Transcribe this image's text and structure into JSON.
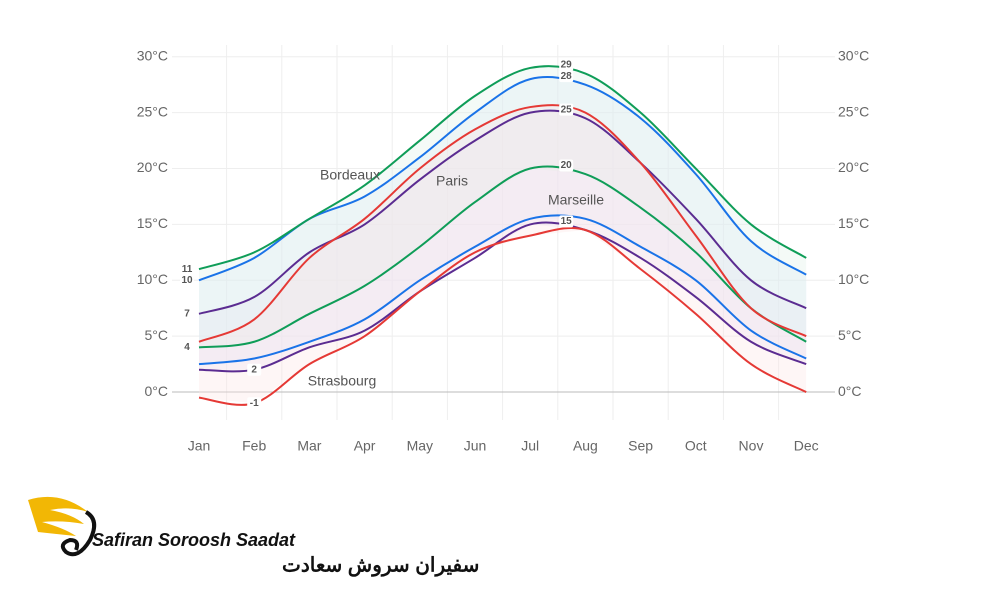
{
  "chart_data": {
    "type": "line",
    "categories": [
      "Jan",
      "Feb",
      "Mar",
      "Apr",
      "May",
      "Jun",
      "Jul",
      "Aug",
      "Sep",
      "Oct",
      "Nov",
      "Dec"
    ],
    "ylim": [
      -2.5,
      31.5
    ],
    "yticks": [
      {
        "value": 0,
        "label": "0°C"
      },
      {
        "value": 5,
        "label": "5°C"
      },
      {
        "value": 10,
        "label": "10°C"
      },
      {
        "value": 15,
        "label": "15°C"
      },
      {
        "value": 20,
        "label": "20°C"
      },
      {
        "value": 25,
        "label": "25°C"
      },
      {
        "value": 30,
        "label": "30°C"
      }
    ],
    "grid": true,
    "series": [
      {
        "name": "Bordeaux",
        "color": "#1a73e8",
        "band_color": "#dce8fb",
        "high": [
          10,
          12,
          15.5,
          17.5,
          21,
          25,
          28,
          27.5,
          24.5,
          19.5,
          13.5,
          10.5
        ],
        "high_labels": [
          "10",
          null,
          null,
          null,
          null,
          null,
          "28",
          null,
          null,
          null,
          null,
          null
        ],
        "low": [
          2.5,
          3,
          4.5,
          6.5,
          10,
          13,
          15.5,
          15.5,
          13,
          10,
          5.5,
          3
        ],
        "low_labels": [
          null,
          null,
          null,
          null,
          null,
          null,
          null,
          null,
          null,
          null,
          null,
          null
        ]
      },
      {
        "name": "Paris",
        "color": "#5b2c91",
        "band_color": "#ece3f5",
        "high": [
          7,
          8.5,
          12.5,
          15,
          19,
          22.5,
          25,
          24.5,
          20.5,
          15.5,
          10,
          7.5
        ],
        "high_labels": [
          "7",
          null,
          null,
          null,
          null,
          null,
          "25",
          null,
          null,
          null,
          null,
          null
        ],
        "low": [
          2,
          2,
          4,
          5.5,
          9,
          12,
          15,
          14.5,
          12,
          8.5,
          4.5,
          2.5
        ],
        "low_labels": [
          null,
          "2",
          null,
          null,
          null,
          null,
          "15",
          null,
          null,
          null,
          null,
          null
        ]
      },
      {
        "name": "Marseille",
        "color": "#0f9d58",
        "band_color": "#e0f2e8",
        "high": [
          11,
          12.5,
          15.5,
          18.5,
          22.5,
          26.5,
          29,
          28.5,
          25,
          20,
          15,
          12
        ],
        "high_labels": [
          "11",
          null,
          null,
          null,
          null,
          null,
          "29",
          null,
          null,
          null,
          null,
          null
        ],
        "low": [
          4,
          4.5,
          7,
          9.5,
          13,
          17,
          20,
          19.5,
          16.5,
          12.5,
          7.5,
          4.5
        ],
        "low_labels": [
          "4",
          null,
          null,
          null,
          null,
          null,
          "20",
          null,
          null,
          null,
          null,
          null
        ]
      },
      {
        "name": "Strasbourg",
        "color": "#e53935",
        "band_color": "#fbe4e4",
        "high": [
          4.5,
          6.5,
          12,
          15.5,
          20,
          23.5,
          25.5,
          25,
          20.5,
          14,
          7.5,
          5
        ],
        "high_labels": [
          null,
          null,
          null,
          null,
          null,
          null,
          null,
          null,
          null,
          null,
          null,
          null
        ],
        "low": [
          -0.5,
          -1,
          2.5,
          5,
          9,
          12.5,
          14,
          14.5,
          11,
          7,
          2.5,
          0
        ],
        "low_labels": [
          null,
          "-1",
          null,
          null,
          null,
          null,
          null,
          null,
          null,
          null,
          null,
          null
        ]
      }
    ]
  },
  "brand": {
    "name": "Safiran Soroosh Saadat",
    "name_fa": "سفیران سروش سعادت"
  }
}
